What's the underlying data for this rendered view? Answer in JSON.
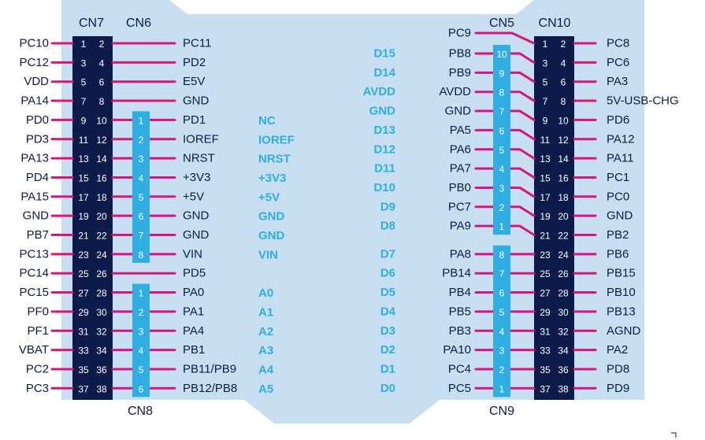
{
  "colors": {
    "board": "#c7dff0",
    "header": "#0d1b4a",
    "morpho": "#2eaee3",
    "pin_line": "#d8157d",
    "label_dark": "#0d1b4a",
    "label_blue": "#2eaee3"
  },
  "connectors": {
    "cn7": "CN7",
    "cn6": "CN6",
    "cn8": "CN8",
    "cn5": "CN5",
    "cn10": "CN10",
    "cn9": "CN9"
  },
  "left_morpho": {
    "rows": [
      {
        "outer": "PC10",
        "p1": "1",
        "p2": "2",
        "inner": "PC11"
      },
      {
        "outer": "PC12",
        "p1": "3",
        "p2": "4",
        "inner": "PD2"
      },
      {
        "outer": "VDD",
        "p1": "5",
        "p2": "6",
        "inner": "E5V"
      },
      {
        "outer": "PA14",
        "p1": "7",
        "p2": "8",
        "inner": "GND"
      },
      {
        "outer": "PD0",
        "p1": "9",
        "p2": "10",
        "inner": "PD1"
      },
      {
        "outer": "PD3",
        "p1": "11",
        "p2": "12",
        "inner": "IOREF"
      },
      {
        "outer": "PA13",
        "p1": "13",
        "p2": "14",
        "inner": "NRST"
      },
      {
        "outer": "PD4",
        "p1": "15",
        "p2": "16",
        "inner": "+3V3"
      },
      {
        "outer": "PA15",
        "p1": "17",
        "p2": "18",
        "inner": "+5V"
      },
      {
        "outer": "GND",
        "p1": "19",
        "p2": "20",
        "inner": "GND"
      },
      {
        "outer": "PB7",
        "p1": "21",
        "p2": "22",
        "inner": "GND"
      },
      {
        "outer": "PC13",
        "p1": "23",
        "p2": "24",
        "inner": "VIN"
      },
      {
        "outer": "PC14",
        "p1": "25",
        "p2": "26",
        "inner": "PD5"
      },
      {
        "outer": "PC15",
        "p1": "27",
        "p2": "28",
        "inner": "PA0"
      },
      {
        "outer": "PF0",
        "p1": "29",
        "p2": "30",
        "inner": "PA1"
      },
      {
        "outer": "PF1",
        "p1": "31",
        "p2": "32",
        "inner": "PA4"
      },
      {
        "outer": "VBAT",
        "p1": "33",
        "p2": "34",
        "inner": "PB1"
      },
      {
        "outer": "PC2",
        "p1": "35",
        "p2": "36",
        "inner": "PB11/PB9"
      },
      {
        "outer": "PC3",
        "p1": "37",
        "p2": "38",
        "inner": "PB12/PB8"
      }
    ]
  },
  "right_morpho": {
    "rows": [
      {
        "inner": "PC9",
        "p1": "1",
        "p2": "2",
        "outer": "PC8"
      },
      {
        "inner": "PB8",
        "p1": "3",
        "p2": "4",
        "outer": "PC6"
      },
      {
        "inner": "PB9",
        "p1": "5",
        "p2": "6",
        "outer": "PA3"
      },
      {
        "inner": "AVDD",
        "p1": "7",
        "p2": "8",
        "outer": "5V-USB-CHG"
      },
      {
        "inner": "GND",
        "p1": "9",
        "p2": "10",
        "outer": "PD6"
      },
      {
        "inner": "PA5",
        "p1": "11",
        "p2": "12",
        "outer": "PA12"
      },
      {
        "inner": "PA6",
        "p1": "13",
        "p2": "14",
        "outer": "PA11"
      },
      {
        "inner": "PA7",
        "p1": "15",
        "p2": "16",
        "outer": "PC1"
      },
      {
        "inner": "PB0",
        "p1": "17",
        "p2": "18",
        "outer": "PC0"
      },
      {
        "inner": "PC7",
        "p1": "19",
        "p2": "20",
        "outer": "GND"
      },
      {
        "inner": "PA9",
        "p1": "21",
        "p2": "22",
        "outer": "PB2"
      },
      {
        "inner": "PA8",
        "p1": "23",
        "p2": "24",
        "outer": "PB6"
      },
      {
        "inner": "PB14",
        "p1": "25",
        "p2": "26",
        "outer": "PB15"
      },
      {
        "inner": "PB4",
        "p1": "27",
        "p2": "28",
        "outer": "PB10"
      },
      {
        "inner": "PB5",
        "p1": "29",
        "p2": "30",
        "outer": "PB13"
      },
      {
        "inner": "PB3",
        "p1": "31",
        "p2": "32",
        "outer": "AGND"
      },
      {
        "inner": "PA10",
        "p1": "33",
        "p2": "34",
        "outer": "PA2"
      },
      {
        "inner": "PC4",
        "p1": "35",
        "p2": "36",
        "outer": "PD8"
      },
      {
        "inner": "PC5",
        "p1": "37",
        "p2": "38",
        "outer": "PD9"
      }
    ]
  },
  "cn6_pins": [
    "1",
    "2",
    "3",
    "4",
    "5",
    "6",
    "7",
    "8"
  ],
  "cn6_labels": [
    "NC",
    "IOREF",
    "NRST",
    "+3V3",
    "+5V",
    "GND",
    "GND",
    "VIN"
  ],
  "cn8_pins": [
    "1",
    "2",
    "3",
    "4",
    "5",
    "6"
  ],
  "cn8_labels": [
    "A0",
    "A1",
    "A2",
    "A3",
    "A4",
    "A5"
  ],
  "cn5_pins": [
    "10",
    "9",
    "8",
    "7",
    "6",
    "5",
    "4",
    "3",
    "2",
    "1"
  ],
  "cn5_labels": [
    "D15",
    "D14",
    "AVDD",
    "GND",
    "D13",
    "D12",
    "D11",
    "D10",
    "D9",
    "D8"
  ],
  "cn9_pins": [
    "8",
    "7",
    "6",
    "5",
    "4",
    "3",
    "2",
    "1"
  ],
  "cn9_labels": [
    "D7",
    "D6",
    "D5",
    "D4",
    "D3",
    "D2",
    "D1",
    "D0"
  ]
}
